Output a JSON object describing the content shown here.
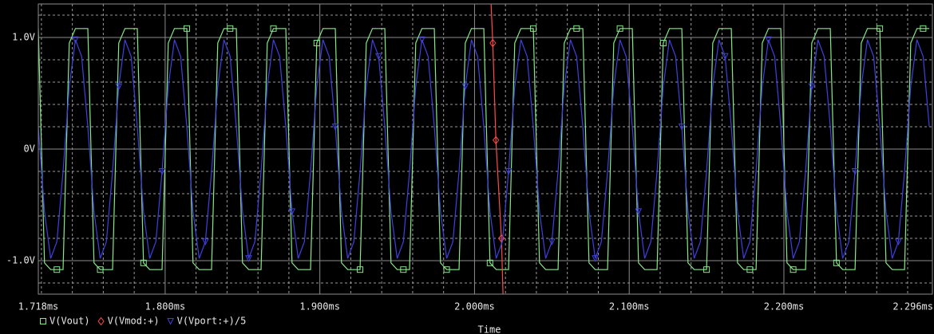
{
  "chart_data": {
    "type": "line",
    "x_label": "Time",
    "xlim": [
      1.718,
      2.296
    ],
    "xticks": [
      {
        "value": 1.718,
        "label": "1.718ms"
      },
      {
        "value": 1.8,
        "label": "1.800ms"
      },
      {
        "value": 1.9,
        "label": "1.900ms"
      },
      {
        "value": 2.0,
        "label": "2.000ms"
      },
      {
        "value": 2.1,
        "label": "2.100ms"
      },
      {
        "value": 2.2,
        "label": "2.200ms"
      },
      {
        "value": 2.296,
        "label": "2.296ms"
      }
    ],
    "minor_xticks": [
      1.72,
      1.74,
      1.76,
      1.78,
      1.82,
      1.84,
      1.86,
      1.88,
      1.92,
      1.94,
      1.96,
      1.98,
      2.02,
      2.04,
      2.06,
      2.08,
      2.12,
      2.14,
      2.16,
      2.18,
      2.22,
      2.24,
      2.26,
      2.28
    ],
    "ylim": [
      -1.3,
      1.3
    ],
    "yticks": [
      {
        "value": 1,
        "label": "1.0V"
      },
      {
        "value": 0,
        "label": "0V"
      },
      {
        "value": -1,
        "label": "-1.0V"
      }
    ],
    "minor_yticks": [
      -1.2,
      -0.8,
      -0.6,
      -0.4,
      -0.2,
      0.2,
      0.4,
      0.6,
      0.8,
      1.2
    ],
    "grid": true,
    "legend": "bottom-left",
    "x": [
      1.718,
      1.722,
      1.726,
      1.73,
      1.734,
      1.738,
      1.742,
      1.746,
      1.75,
      1.754,
      1.758,
      1.762,
      1.766,
      1.77,
      1.774,
      1.778,
      1.782,
      1.786,
      1.79,
      1.794,
      1.798,
      1.802,
      1.806,
      1.81,
      1.814,
      1.818,
      1.822,
      1.826,
      1.83,
      1.834,
      1.838,
      1.842,
      1.846,
      1.85,
      1.854,
      1.858,
      1.862,
      1.866,
      1.87,
      1.874,
      1.878,
      1.882,
      1.886,
      1.89,
      1.894,
      1.898,
      1.902,
      1.906,
      1.91,
      1.914,
      1.918,
      1.922,
      1.926,
      1.93,
      1.934,
      1.938,
      1.942,
      1.946,
      1.95,
      1.954,
      1.958,
      1.962,
      1.966,
      1.97,
      1.974,
      1.978,
      1.982,
      1.986,
      1.99,
      1.994,
      1.998,
      2.002,
      2.006,
      2.01,
      2.014,
      2.018,
      2.022,
      2.026,
      2.03,
      2.034,
      2.038,
      2.042,
      2.046,
      2.05,
      2.054,
      2.058,
      2.062,
      2.066,
      2.07,
      2.074,
      2.078,
      2.082,
      2.086,
      2.09,
      2.094,
      2.098,
      2.102,
      2.106,
      2.11,
      2.114,
      2.118,
      2.122,
      2.126,
      2.13,
      2.134,
      2.138,
      2.142,
      2.146,
      2.15,
      2.154,
      2.158,
      2.162,
      2.166,
      2.17,
      2.174,
      2.178,
      2.182,
      2.186,
      2.19,
      2.194,
      2.198,
      2.202,
      2.206,
      2.21,
      2.214,
      2.218,
      2.222,
      2.226,
      2.23,
      2.234,
      2.238,
      2.242,
      2.246,
      2.25,
      2.254,
      2.258,
      2.262,
      2.266,
      2.27,
      2.274,
      2.278,
      2.282,
      2.286,
      2.29,
      2.294
    ],
    "series": [
      {
        "name": "V(Vout)",
        "color": "#86e886",
        "marker": "square",
        "values": [
          1.08,
          -1.02,
          -1.08,
          -1.08,
          -1.08,
          0.95,
          1.08,
          1.08,
          1.08,
          -1.02,
          -1.08,
          -1.08,
          -1.08,
          0.95,
          1.08,
          1.08,
          1.08,
          -1.02,
          -1.08,
          -1.08,
          -1.08,
          0.95,
          1.08,
          1.08,
          1.08,
          -1.02,
          -1.08,
          -1.08,
          -1.08,
          0.95,
          1.08,
          1.08,
          1.08,
          -1.02,
          -1.08,
          -1.08,
          -1.08,
          0.95,
          1.08,
          1.08,
          1.08,
          -1.02,
          -1.08,
          -1.08,
          -1.08,
          0.95,
          1.08,
          1.08,
          1.08,
          -1.02,
          -1.08,
          -1.08,
          -1.08,
          0.95,
          1.08,
          1.08,
          1.08,
          -1.02,
          -1.08,
          -1.08,
          -1.08,
          0.95,
          1.08,
          1.08,
          1.08,
          -1.02,
          -1.08,
          -1.08,
          -1.08,
          0.95,
          1.08,
          1.08,
          1.08,
          -1.02,
          -1.08,
          -1.08,
          -1.08,
          0.95,
          1.08,
          1.08,
          1.08,
          -1.02,
          -1.08,
          -1.08,
          -1.08,
          0.95,
          1.08,
          1.08,
          1.08,
          -1.02,
          -1.08,
          -1.08,
          -1.08,
          0.95,
          1.08,
          1.08,
          1.08,
          -1.02,
          -1.08,
          -1.08,
          -1.08,
          0.95,
          1.08,
          1.08,
          1.08,
          -1.02,
          -1.08,
          -1.08,
          -1.08,
          0.95,
          1.08,
          1.08,
          1.08,
          -1.02,
          -1.08,
          -1.08,
          -1.08,
          0.95,
          1.08,
          1.08,
          1.08,
          -1.02,
          -1.08,
          -1.08,
          -1.08,
          0.95,
          1.08,
          1.08,
          1.08,
          -1.02,
          -1.08,
          -1.08,
          -1.08,
          0.95,
          1.08,
          1.08,
          1.08,
          -1.02,
          -1.08,
          -1.08,
          -1.08,
          0.95,
          1.08,
          1.08,
          1.08
        ]
      },
      {
        "name": "V(Vmod:+)",
        "color": "#ff4a4a",
        "marker": "diamond",
        "x": [
          2.0107,
          2.0118,
          2.0138,
          2.0174,
          2.0184
        ],
        "values": [
          1.3,
          0.95,
          0.08,
          -0.8,
          -1.3
        ]
      },
      {
        "name": "V(Vport:+)/5",
        "color": "#4040e0",
        "marker": "triangle",
        "values": [
          0.2,
          -0.56,
          -0.98,
          -0.83,
          -0.2,
          0.56,
          0.98,
          0.83,
          0.2,
          -0.56,
          -0.98,
          -0.83,
          -0.2,
          0.56,
          0.98,
          0.83,
          0.2,
          -0.56,
          -0.98,
          -0.83,
          -0.2,
          0.56,
          0.98,
          0.83,
          0.2,
          -0.56,
          -0.98,
          -0.83,
          -0.2,
          0.56,
          0.98,
          0.83,
          0.2,
          -0.56,
          -0.98,
          -0.83,
          -0.2,
          0.56,
          0.98,
          0.83,
          0.2,
          -0.56,
          -0.98,
          -0.83,
          -0.2,
          0.56,
          0.98,
          0.83,
          0.2,
          -0.56,
          -0.98,
          -0.83,
          -0.2,
          0.56,
          0.98,
          0.83,
          0.2,
          -0.56,
          -0.98,
          -0.83,
          -0.2,
          0.56,
          0.98,
          0.83,
          0.2,
          -0.56,
          -0.98,
          -0.83,
          -0.2,
          0.56,
          0.98,
          0.83,
          0.2,
          -0.56,
          -0.98,
          -0.83,
          -0.2,
          0.56,
          0.98,
          0.83,
          0.2,
          -0.56,
          -0.98,
          -0.83,
          -0.2,
          0.56,
          0.98,
          0.83,
          0.2,
          -0.56,
          -0.98,
          -0.83,
          -0.2,
          0.56,
          0.98,
          0.83,
          0.2,
          -0.56,
          -0.98,
          -0.83,
          -0.2,
          0.56,
          0.98,
          0.83,
          0.2,
          -0.56,
          -0.98,
          -0.83,
          -0.2,
          0.56,
          0.98,
          0.83,
          0.2,
          -0.56,
          -0.98,
          -0.83,
          -0.2,
          0.56,
          0.98,
          0.83,
          0.2,
          -0.56,
          -0.98,
          -0.83,
          -0.2,
          0.56,
          0.98,
          0.83,
          0.2,
          -0.56,
          -0.98,
          -0.83,
          -0.2,
          0.56,
          0.98,
          0.83,
          0.2,
          -0.56,
          -0.98,
          -0.83,
          -0.2,
          0.56,
          0.98,
          0.83,
          0.2
        ]
      }
    ]
  }
}
